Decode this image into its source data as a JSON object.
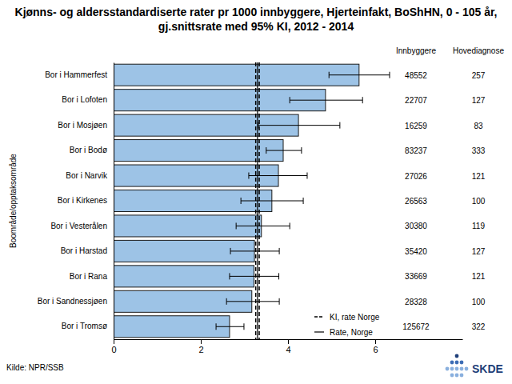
{
  "chart_data": {
    "type": "bar",
    "orientation": "horizontal",
    "title": "Kjønns- og aldersstandardiserte rater pr 1000 innbyggere, Hjerteinfakt, BoShHN, 0 - 105 år, gj.snittsrate med 95% KI, 2012 - 2014",
    "y_label": "Boområde/opptaksområde",
    "categories": [
      "Bor i Hammerfest",
      "Bor i Lofoten",
      "Bor i Mosjøen",
      "Bor i Bodø",
      "Bor i Narvik",
      "Bor i Kirkenes",
      "Bor i Vesterålen",
      "Bor i Harstad",
      "Bor i Rana",
      "Bor i Sandnessjøen",
      "Bor i Tromsø"
    ],
    "values": [
      5.63,
      4.86,
      4.24,
      3.89,
      3.78,
      3.63,
      3.39,
      3.23,
      3.22,
      3.17,
      2.66
    ],
    "ci_low": [
      4.94,
      4.04,
      3.32,
      3.5,
      3.1,
      2.92,
      2.81,
      2.68,
      2.66,
      2.59,
      2.35
    ],
    "ci_high": [
      6.33,
      5.71,
      5.19,
      4.31,
      4.44,
      4.35,
      4.04,
      3.8,
      3.79,
      3.8,
      2.99
    ],
    "color": "#9dc3e6",
    "xlim": [
      0,
      8
    ],
    "xticks": [
      0,
      2,
      4,
      6
    ],
    "grid": false,
    "reference": {
      "rate": 3.3,
      "rate_label": "Rate, Norge",
      "ci": [
        3.26,
        3.34
      ],
      "ci_label": "KI, rate Norge"
    },
    "columns": [
      {
        "name": "Innbyggere",
        "values": [
          48552,
          22707,
          16259,
          83237,
          27026,
          26563,
          30380,
          35420,
          33669,
          28328,
          125672
        ]
      },
      {
        "name": "Hovediagnose",
        "values": [
          257,
          127,
          83,
          333,
          121,
          100,
          119,
          127,
          121,
          100,
          322
        ]
      }
    ],
    "source": "Kilde: NPR/SSB",
    "logo": "SKDE"
  }
}
